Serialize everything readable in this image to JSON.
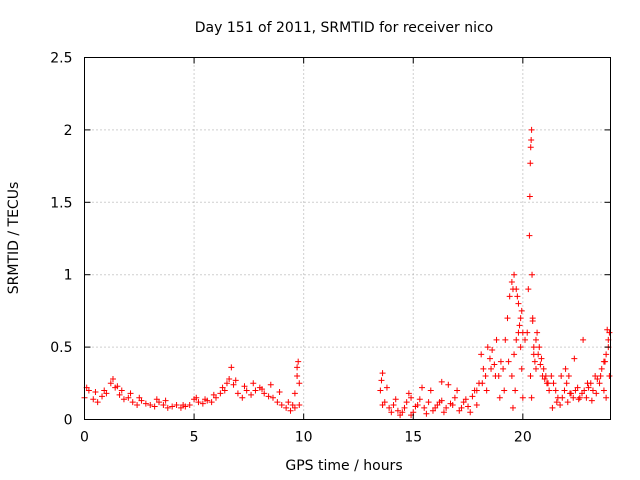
{
  "chart_data": {
    "type": "scatter",
    "title": "Day 151 of 2011, SRMTID for receiver nico",
    "xlabel": "GPS time / hours",
    "ylabel": "SRMTID / TECUs",
    "xlim": [
      0,
      24
    ],
    "ylim": [
      0,
      2.5
    ],
    "x_ticks": [
      0,
      5,
      10,
      15,
      20
    ],
    "x_tick_labels": [
      "0",
      "5",
      "10",
      "15",
      "20"
    ],
    "y_ticks": [
      0,
      0.5,
      1,
      1.5,
      2,
      2.5
    ],
    "y_tick_labels": [
      "0",
      "0.5",
      "1",
      "1.5",
      "2",
      "2.5"
    ],
    "grid": true,
    "marker": "+",
    "color": "#ff0000",
    "series": [
      {
        "x": [
          0.0,
          0.2,
          0.4,
          0.6,
          0.8,
          1.0,
          1.2,
          1.4,
          1.6,
          1.8,
          2.0,
          2.2,
          2.4,
          2.6,
          2.8,
          3.0,
          3.2,
          3.4,
          3.6,
          3.8,
          4.0,
          4.2,
          4.4,
          4.6,
          4.8,
          5.0,
          5.2,
          5.4,
          5.6,
          5.8,
          6.0,
          6.2,
          6.4,
          6.6,
          6.8,
          7.0,
          7.2,
          7.4,
          7.6,
          7.8,
          8.0,
          8.2,
          8.4,
          8.6,
          8.8,
          9.0,
          9.2,
          9.4,
          9.6,
          9.8,
          0.1,
          0.5,
          0.9,
          1.3,
          1.5,
          1.7,
          2.1,
          2.5,
          3.3,
          3.7,
          4.5,
          5.1,
          5.5,
          5.9,
          6.3,
          6.5,
          6.7,
          6.9,
          7.3,
          7.7,
          8.1,
          8.5,
          8.9,
          9.3,
          9.5,
          9.7,
          9.75,
          9.7,
          9.8,
          9.6,
          13.5,
          13.6,
          13.7,
          13.9,
          14.1,
          14.3,
          14.5,
          14.7,
          14.9,
          15.1,
          15.3,
          15.5,
          15.7,
          15.9,
          16.1,
          16.3,
          16.5,
          16.7,
          16.9,
          17.1,
          17.3,
          17.5,
          17.7,
          17.9,
          18.0,
          13.6,
          13.8,
          14.0,
          14.2,
          14.4,
          14.6,
          14.8,
          15.0,
          15.2,
          15.4,
          15.6,
          15.8,
          16.0,
          16.2,
          16.4,
          16.6,
          16.8,
          17.0,
          17.2,
          17.4,
          17.6,
          17.8,
          13.55,
          14.9,
          16.3,
          17.9,
          18.1,
          18.2,
          18.3,
          18.4,
          18.5,
          18.6,
          18.7,
          18.8,
          18.9,
          19.0,
          19.1,
          19.2,
          19.3,
          19.4,
          19.5,
          19.6,
          19.7,
          19.8,
          19.9,
          20.0,
          20.1,
          18.15,
          18.35,
          18.55,
          18.75,
          18.95,
          19.15,
          19.35,
          19.55,
          19.75,
          19.95,
          19.5,
          19.6,
          19.7,
          19.8,
          19.9,
          20.0,
          19.55,
          19.65,
          19.85,
          19.95,
          20.2,
          20.25,
          20.3,
          20.32,
          20.34,
          20.36,
          20.38,
          20.4,
          20.42,
          20.45,
          20.5,
          20.55,
          20.6,
          20.7,
          20.8,
          20.9,
          21.0,
          21.1,
          21.2,
          20.35,
          20.4,
          20.45,
          20.5,
          20.6,
          20.65,
          20.75,
          20.85,
          20.95,
          21.05,
          21.15,
          21.3,
          21.4,
          21.5,
          21.6,
          21.7,
          21.8,
          21.9,
          22.0,
          22.1,
          22.2,
          22.3,
          22.4,
          22.5,
          22.6,
          22.7,
          22.8,
          22.9,
          23.0,
          23.1,
          23.2,
          23.3,
          23.4,
          23.5,
          23.6,
          23.7,
          23.8,
          23.9,
          21.35,
          21.55,
          21.75,
          21.95,
          22.15,
          22.35,
          22.55,
          22.75,
          22.95,
          23.15,
          23.35,
          23.55,
          23.75,
          23.95,
          23.85,
          23.9,
          23.95,
          23.8,
          23.7,
          22.05
        ],
        "y": [
          0.15,
          0.2,
          0.14,
          0.12,
          0.16,
          0.18,
          0.25,
          0.22,
          0.17,
          0.14,
          0.15,
          0.12,
          0.1,
          0.13,
          0.11,
          0.1,
          0.09,
          0.12,
          0.1,
          0.08,
          0.09,
          0.1,
          0.08,
          0.09,
          0.1,
          0.14,
          0.12,
          0.11,
          0.13,
          0.12,
          0.15,
          0.18,
          0.2,
          0.28,
          0.24,
          0.18,
          0.15,
          0.2,
          0.17,
          0.2,
          0.22,
          0.18,
          0.16,
          0.15,
          0.12,
          0.1,
          0.08,
          0.06,
          0.08,
          0.1,
          0.22,
          0.19,
          0.2,
          0.28,
          0.23,
          0.2,
          0.18,
          0.15,
          0.14,
          0.13,
          0.1,
          0.15,
          0.14,
          0.17,
          0.22,
          0.25,
          0.36,
          0.27,
          0.23,
          0.25,
          0.21,
          0.24,
          0.19,
          0.12,
          0.1,
          0.3,
          0.4,
          0.36,
          0.25,
          0.18,
          0.2,
          0.32,
          0.12,
          0.08,
          0.1,
          0.06,
          0.05,
          0.12,
          0.15,
          0.09,
          0.14,
          0.08,
          0.12,
          0.06,
          0.1,
          0.13,
          0.08,
          0.11,
          0.15,
          0.06,
          0.12,
          0.09,
          0.16,
          0.1,
          0.25,
          0.1,
          0.22,
          0.05,
          0.14,
          0.03,
          0.08,
          0.18,
          0.05,
          0.1,
          0.22,
          0.04,
          0.2,
          0.08,
          0.12,
          0.05,
          0.24,
          0.1,
          0.2,
          0.08,
          0.14,
          0.05,
          0.2,
          0.27,
          0.03,
          0.26,
          0.2,
          0.45,
          0.35,
          0.3,
          0.5,
          0.42,
          0.48,
          0.38,
          0.55,
          0.3,
          0.4,
          0.35,
          0.55,
          0.7,
          0.85,
          0.95,
          1.0,
          0.9,
          0.8,
          0.7,
          0.6,
          0.55,
          0.25,
          0.2,
          0.35,
          0.3,
          0.15,
          0.2,
          0.4,
          0.9,
          0.85,
          0.75,
          0.3,
          0.45,
          0.55,
          0.6,
          0.5,
          0.15,
          0.08,
          0.2,
          0.65,
          0.35,
          0.6,
          0.9,
          1.27,
          1.54,
          1.77,
          1.88,
          1.93,
          2.0,
          1.0,
          0.7,
          0.5,
          0.4,
          0.35,
          0.45,
          0.38,
          0.3,
          0.28,
          0.25,
          0.2,
          0.3,
          0.15,
          0.68,
          0.45,
          0.55,
          0.6,
          0.5,
          0.42,
          0.35,
          0.3,
          0.25,
          0.3,
          0.25,
          0.2,
          0.15,
          0.1,
          0.15,
          0.2,
          0.25,
          0.3,
          0.18,
          0.15,
          0.2,
          0.22,
          0.15,
          0.18,
          0.2,
          0.15,
          0.22,
          0.25,
          0.2,
          0.3,
          0.28,
          0.25,
          0.35,
          0.4,
          0.45,
          0.5,
          0.08,
          0.12,
          0.3,
          0.35,
          0.18,
          0.42,
          0.14,
          0.55,
          0.25,
          0.13,
          0.18,
          0.3,
          0.4,
          0.6,
          0.62,
          0.55,
          0.3,
          0.15,
          0.2,
          0.12
        ]
      }
    ]
  }
}
